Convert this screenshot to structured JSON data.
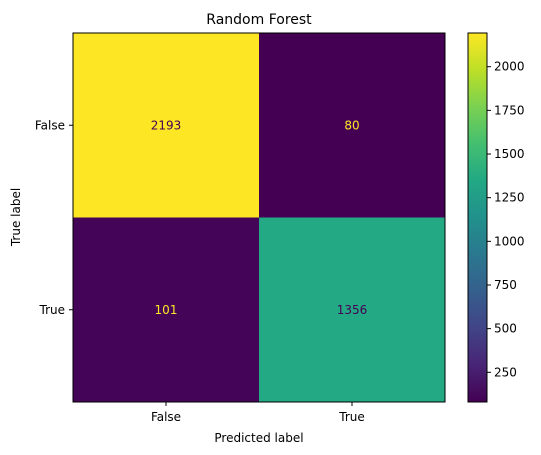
{
  "chart_data": {
    "type": "heatmap",
    "title": "Random Forest",
    "xlabel": "Predicted label",
    "ylabel": "True label",
    "x_categories": [
      "False",
      "True"
    ],
    "y_categories": [
      "False",
      "True"
    ],
    "matrix": [
      [
        2193,
        80
      ],
      [
        101,
        1356
      ]
    ],
    "colormap": "viridis",
    "colorbar": {
      "min": 80,
      "max": 2193,
      "ticks": [
        250,
        500,
        750,
        1000,
        1250,
        1500,
        1750,
        2000
      ]
    },
    "text_colors": {
      "on_dark": "#fde725",
      "on_light": "#440154"
    }
  }
}
